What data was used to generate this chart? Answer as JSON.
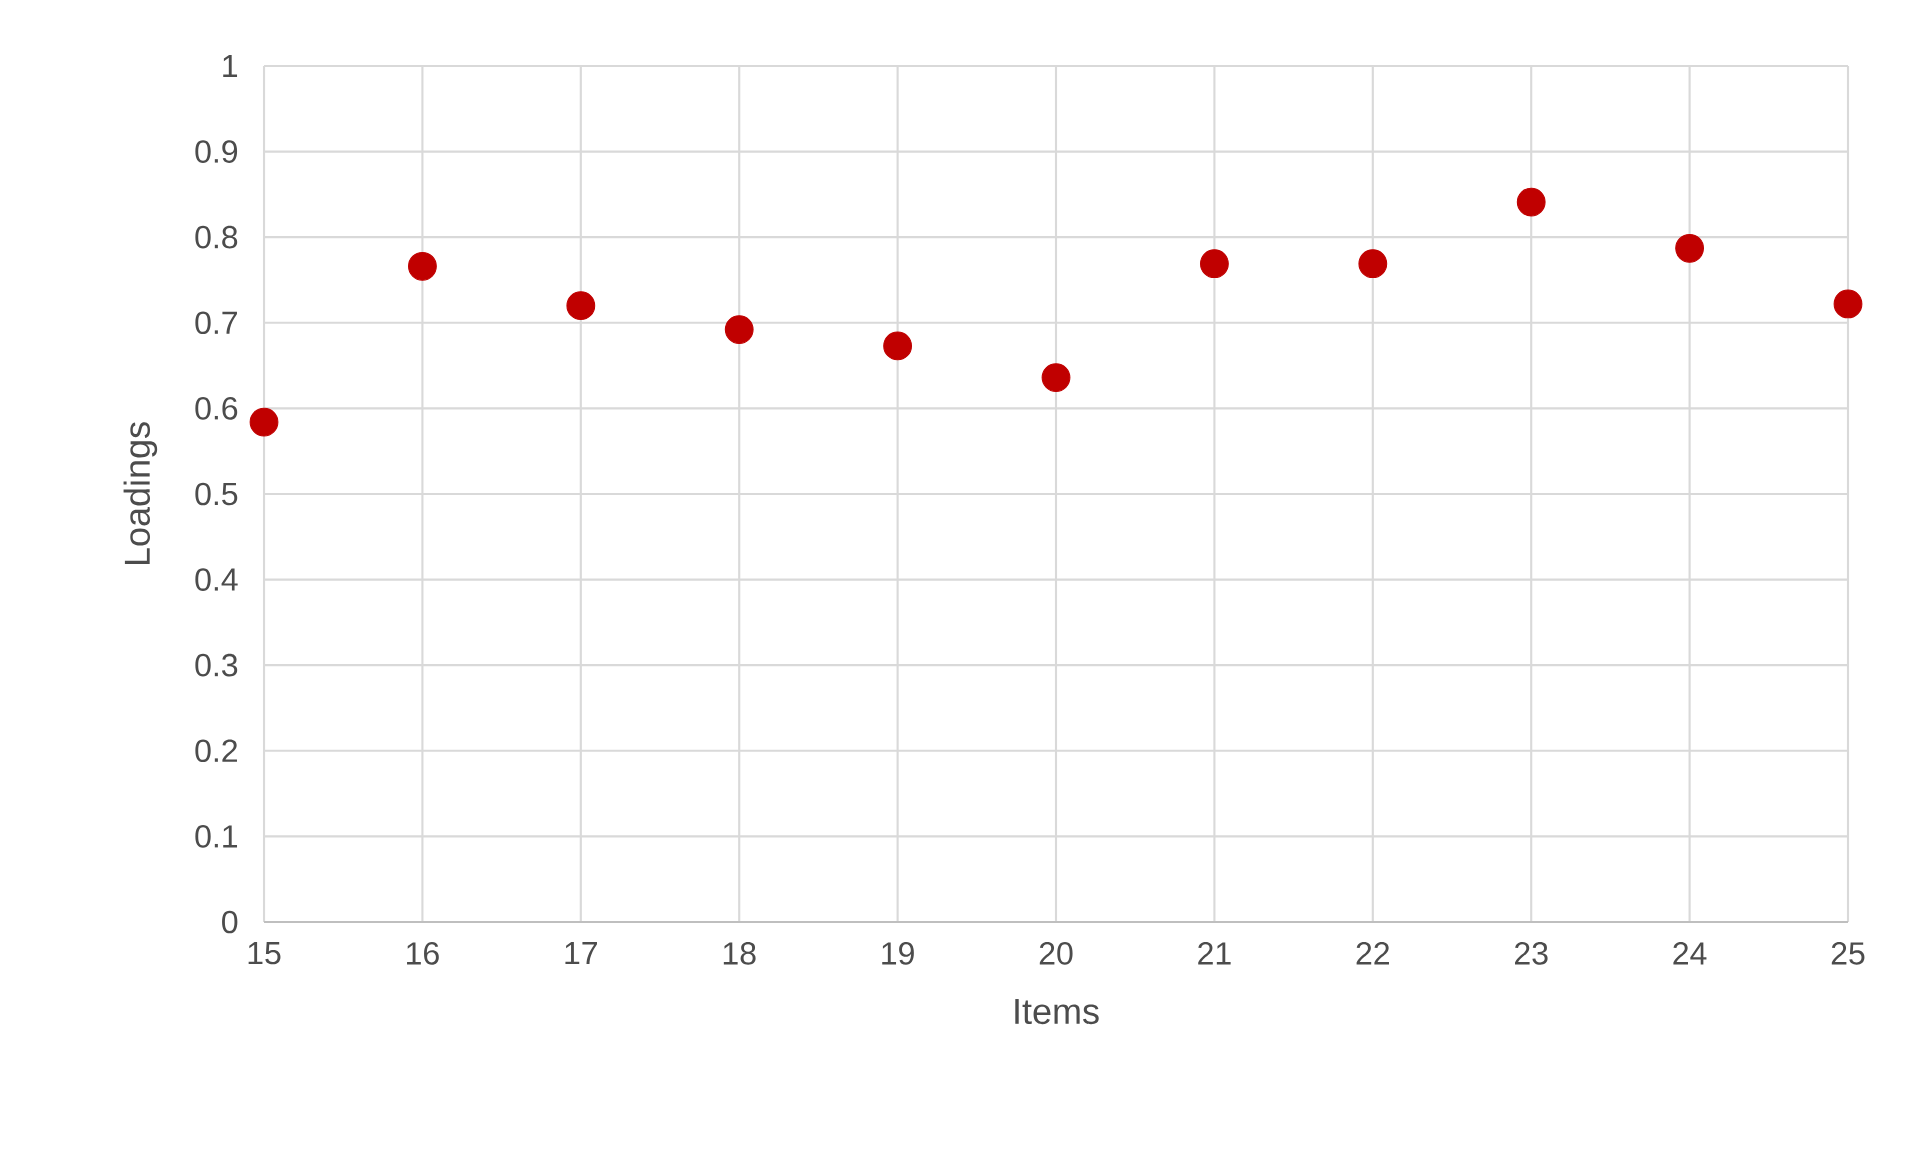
{
  "chart_data": {
    "type": "scatter",
    "xlabel": "Items",
    "ylabel": "Loadings",
    "x": [
      15,
      16,
      17,
      18,
      19,
      20,
      21,
      22,
      23,
      24,
      25
    ],
    "series": [
      {
        "color": "#c00000",
        "values": [
          0.584,
          0.766,
          0.72,
          0.692,
          0.673,
          0.636,
          0.769,
          0.769,
          0.841,
          0.787,
          0.722
        ]
      }
    ],
    "xlim": [
      15,
      25
    ],
    "xticks": [
      15,
      16,
      17,
      18,
      19,
      20,
      21,
      22,
      23,
      24,
      25
    ],
    "ylim": [
      0,
      1
    ],
    "yticks": [
      0,
      0.1,
      0.2,
      0.3,
      0.4,
      0.5,
      0.6,
      0.7,
      0.8,
      0.9,
      1
    ],
    "grid": true,
    "marker": "circle",
    "legend": false
  }
}
